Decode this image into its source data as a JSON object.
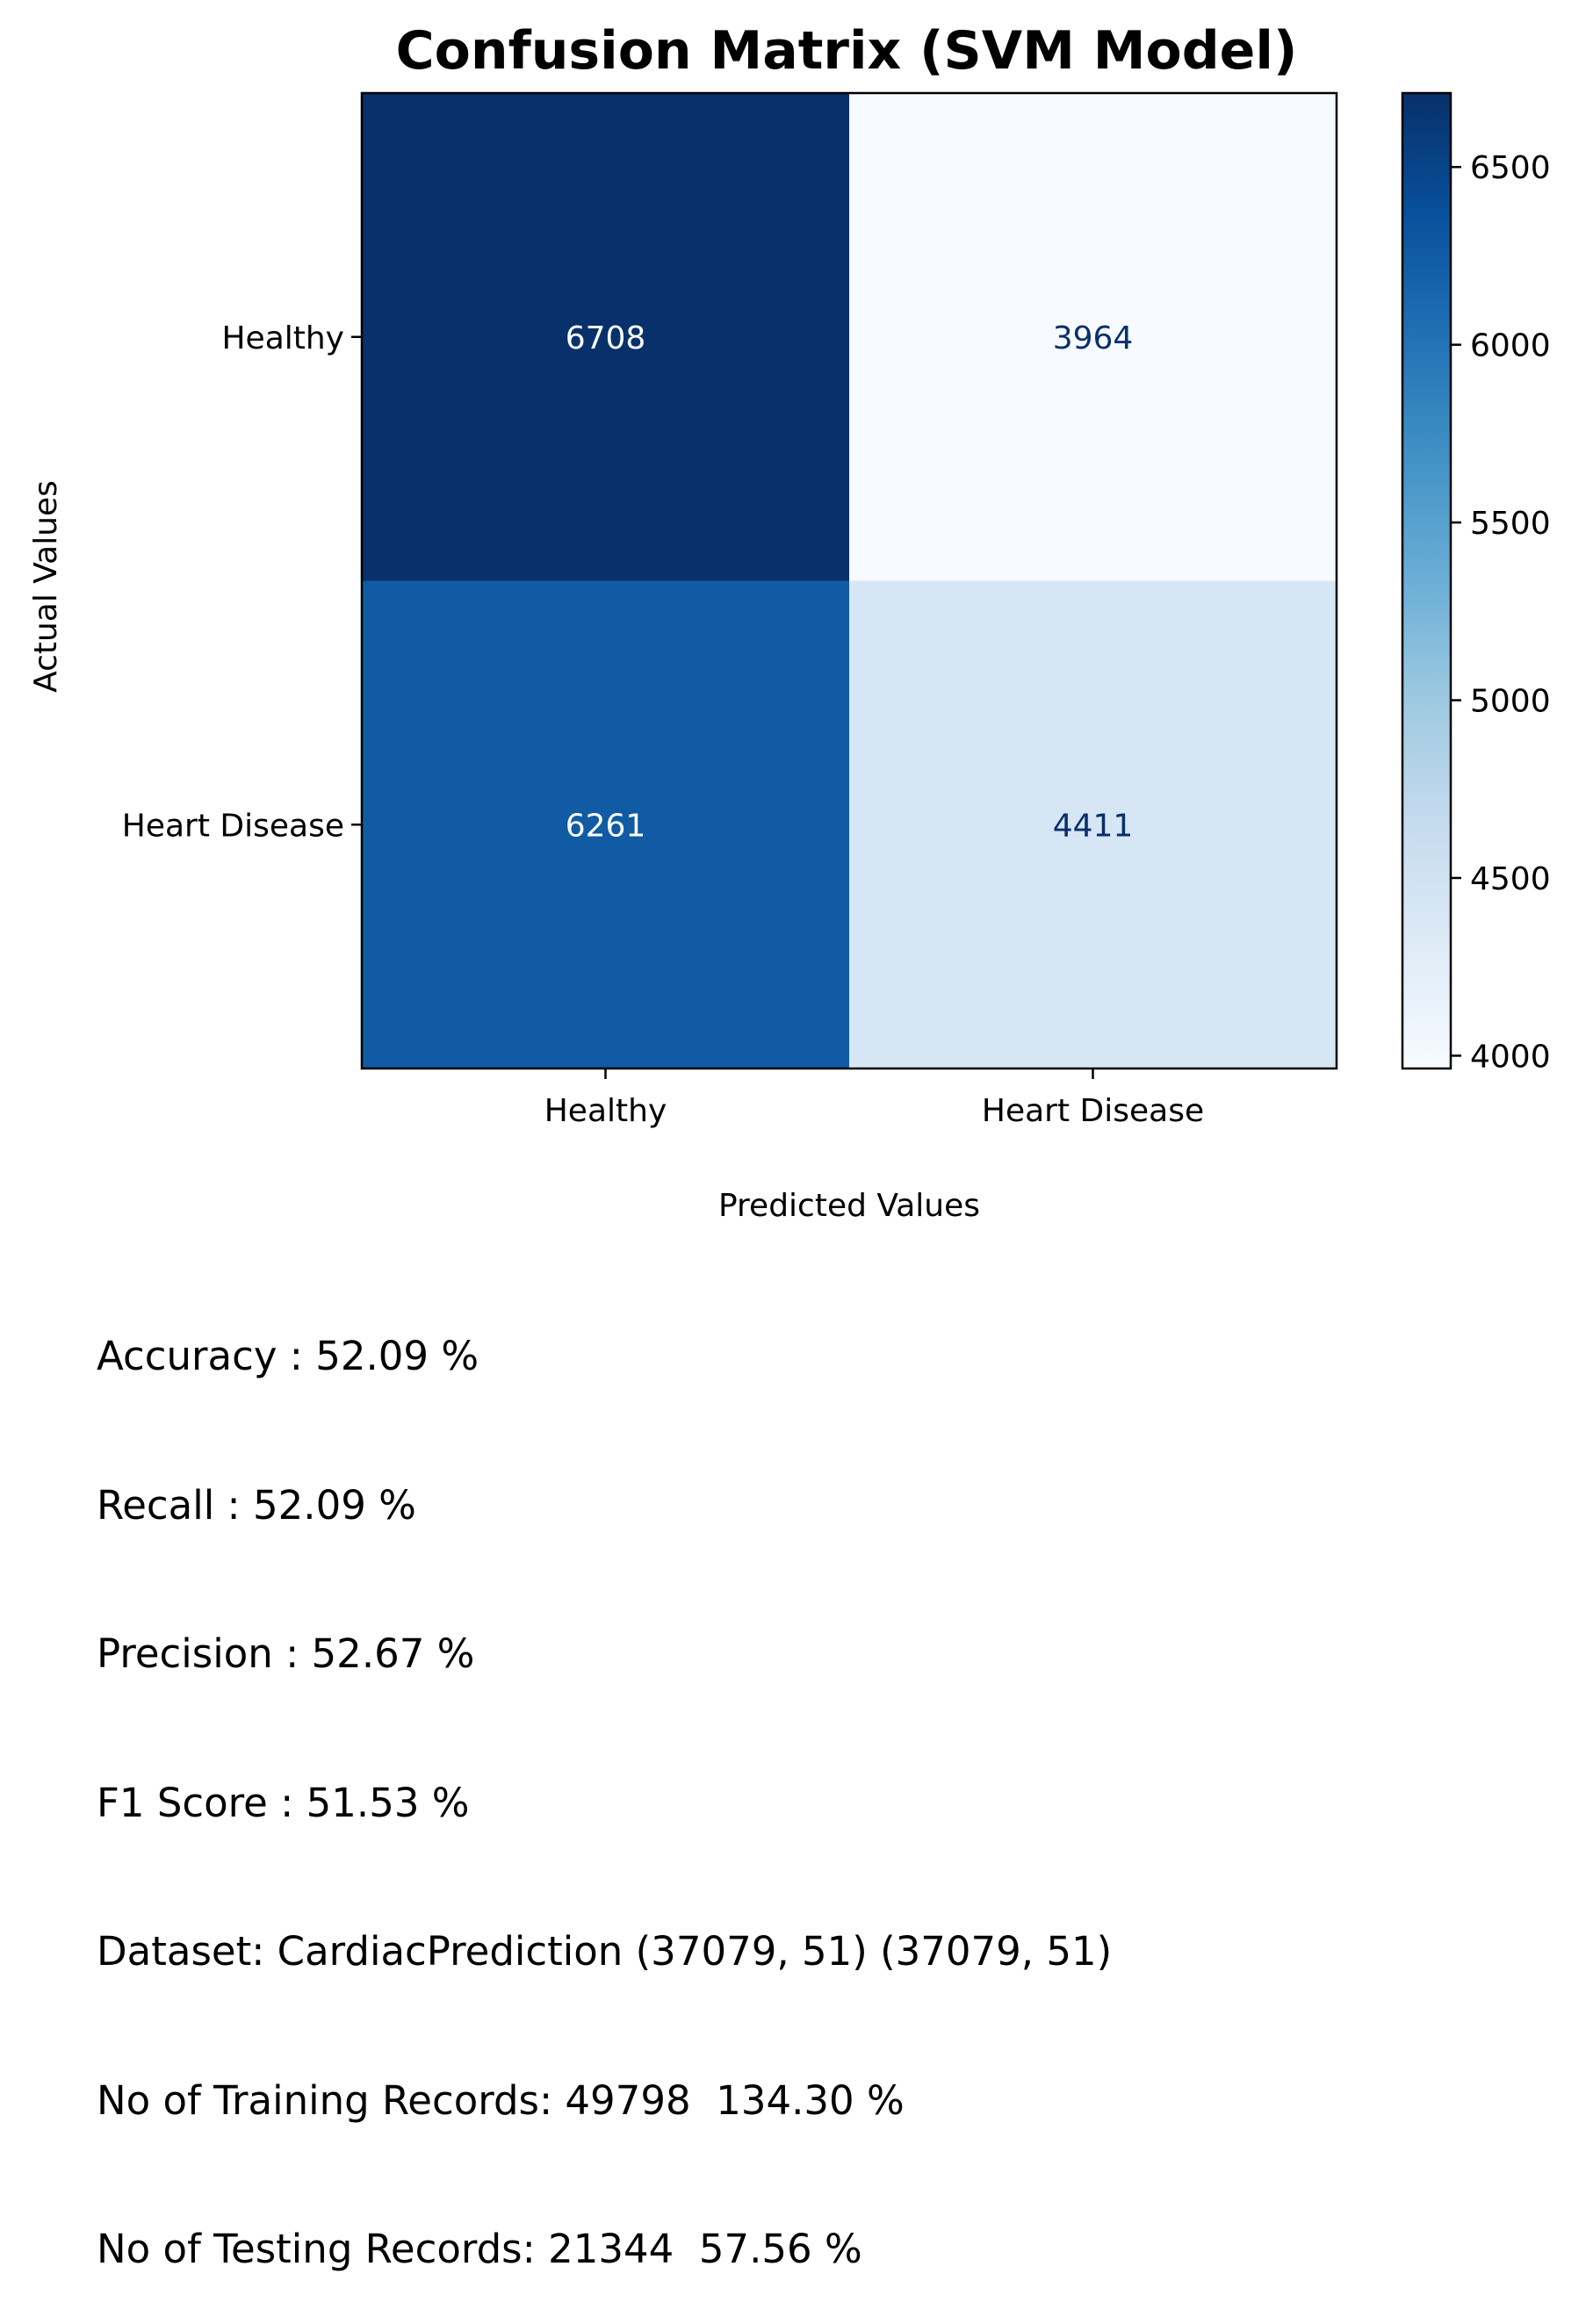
{
  "chart_data": {
    "type": "heatmap",
    "title": "Confusion Matrix (SVM Model)",
    "xlabel": "Predicted Values",
    "ylabel": "Actual Values",
    "x_categories": [
      "Healthy",
      "Heart Disease"
    ],
    "y_categories": [
      "Healthy",
      "Heart Disease"
    ],
    "values": [
      [
        6708,
        3964
      ],
      [
        6261,
        4411
      ]
    ],
    "colormap": "Blues",
    "colorbar": {
      "range": [
        3964,
        6708
      ],
      "ticks": [
        4000,
        4500,
        5000,
        5500,
        6000,
        6500
      ],
      "tick_labels": [
        "4000",
        "4500",
        "5000",
        "5500",
        "6000",
        "6500"
      ]
    },
    "cell_label_colors": {
      "dark": "#ffffff",
      "light": "#08306b"
    }
  },
  "stats": {
    "lines": [
      "Accuracy : 52.09 %",
      "Recall : 52.09 %",
      "Precision : 52.67 %",
      "F1 Score : 51.53 %",
      "Dataset: CardiacPrediction (37079, 51) (37079, 51)",
      "No of Training Records: 49798  134.30 %",
      "No of Testing Records: 21344  57.56 %"
    ]
  }
}
